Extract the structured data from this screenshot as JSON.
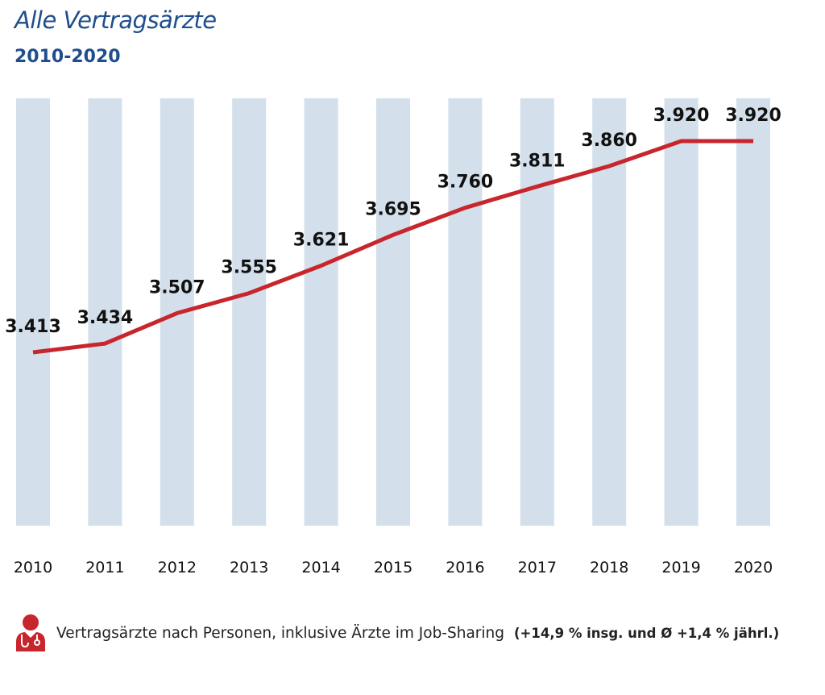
{
  "header": {
    "title": "Alle Vertragsärzte",
    "subtitle": "2010-2020"
  },
  "footnote": {
    "icon": "doctor-icon",
    "text": "Vertragsärzte nach Personen, inklusive Ärzte im Job-Sharing",
    "bold_text": "(+14,9 % insg. und Ø +1,4 % jährl.)"
  },
  "colors": {
    "line": "#c8262d",
    "column": "#d3dfea",
    "title": "#1f4e8c",
    "icon": "#c8262d"
  },
  "chart_data": {
    "type": "line",
    "title": "Alle Vertragsärzte",
    "subtitle": "2010-2020",
    "xlabel": "",
    "ylabel": "",
    "grid": false,
    "legend": "none",
    "categories": [
      "2010",
      "2011",
      "2012",
      "2013",
      "2014",
      "2015",
      "2016",
      "2017",
      "2018",
      "2019",
      "2020"
    ],
    "series": [
      {
        "values": [
          3413,
          3434,
          3507,
          3555,
          3621,
          3695,
          3760,
          3811,
          3860,
          3920,
          3920
        ],
        "labels": [
          "3.413",
          "3.434",
          "3.507",
          "3.555",
          "3.621",
          "3.695",
          "3.760",
          "3.811",
          "3.860",
          "3.920",
          "3.920"
        ]
      }
    ],
    "ylim": [
      3000,
      4000
    ]
  }
}
